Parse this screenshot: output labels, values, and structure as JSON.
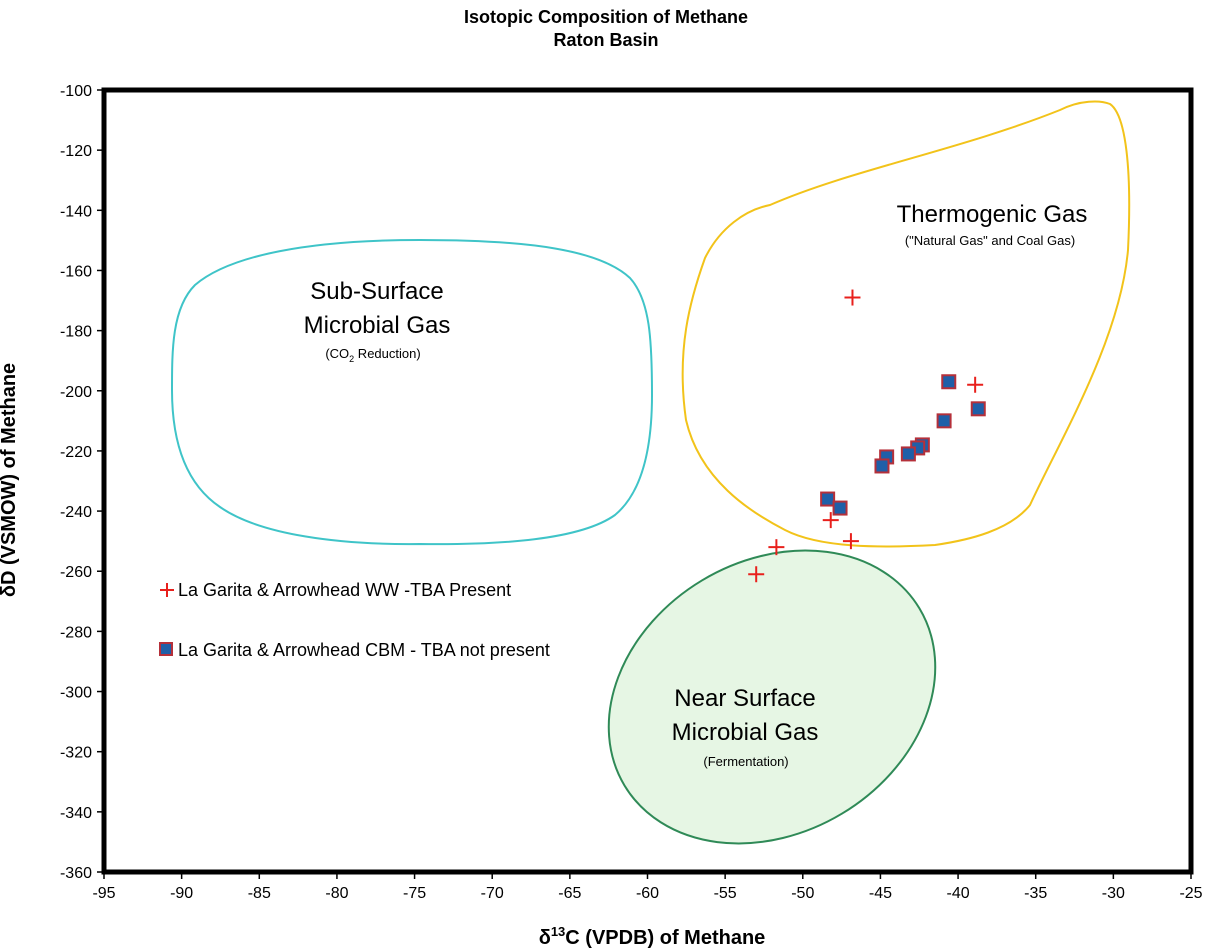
{
  "chart_data": {
    "type": "scatter",
    "title_line1": "Isotopic Composition of Methane",
    "title_line2": "Raton Basin",
    "xlabel_pre": "δ",
    "xlabel_sup": "13",
    "xlabel_post": "C  (VPDB) of Methane",
    "ylabel": "δD (VSMOW) of Methane",
    "xlim": [
      -95,
      -25
    ],
    "ylim": [
      -360,
      -100
    ],
    "xticks": [
      -95,
      -90,
      -85,
      -80,
      -75,
      -70,
      -65,
      -60,
      -55,
      -50,
      -45,
      -40,
      -35,
      -30,
      -25
    ],
    "yticks": [
      -100,
      -120,
      -140,
      -160,
      -180,
      -200,
      -220,
      -240,
      -260,
      -280,
      -300,
      -320,
      -340,
      -360
    ],
    "series": [
      {
        "name": "La Garita & Arrowhead WW -TBA Present",
        "marker": "plus",
        "color": "#e8201c",
        "points": [
          {
            "x": -46.8,
            "y": -169
          },
          {
            "x": -38.9,
            "y": -198
          },
          {
            "x": -48.2,
            "y": -243
          },
          {
            "x": -46.9,
            "y": -250
          },
          {
            "x": -51.7,
            "y": -252
          },
          {
            "x": -53.0,
            "y": -261
          }
        ]
      },
      {
        "name": "La Garita & Arrowhead CBM - TBA not present",
        "marker": "square",
        "color": "#1f5fa8",
        "edge_color": "#b5303a",
        "points": [
          {
            "x": -40.6,
            "y": -197
          },
          {
            "x": -38.7,
            "y": -206
          },
          {
            "x": -40.9,
            "y": -210
          },
          {
            "x": -42.3,
            "y": -218
          },
          {
            "x": -42.6,
            "y": -219
          },
          {
            "x": -43.2,
            "y": -221
          },
          {
            "x": -44.6,
            "y": -222
          },
          {
            "x": -44.9,
            "y": -225
          },
          {
            "x": -48.4,
            "y": -236
          },
          {
            "x": -47.6,
            "y": -239
          }
        ]
      }
    ],
    "regions": [
      {
        "key": "subsurface",
        "label_line1": "Sub-Surface",
        "label_line2": "Microbial Gas",
        "note_pre": "(CO",
        "note_sub": "2",
        "note_post": " Reduction)",
        "stroke": "#3fc4c8",
        "fill": "none"
      },
      {
        "key": "thermogenic",
        "label_line1": "Thermogenic Gas",
        "note": "(\"Natural Gas\" and Coal Gas)",
        "stroke": "#f2c31a",
        "fill": "none"
      },
      {
        "key": "nearsurface",
        "label_line1": "Near Surface",
        "label_line2": "Microbial Gas",
        "note": "(Fermentation)",
        "stroke": "#2f8a57",
        "fill": "#e6f6e4"
      }
    ],
    "legend_position": "left"
  }
}
